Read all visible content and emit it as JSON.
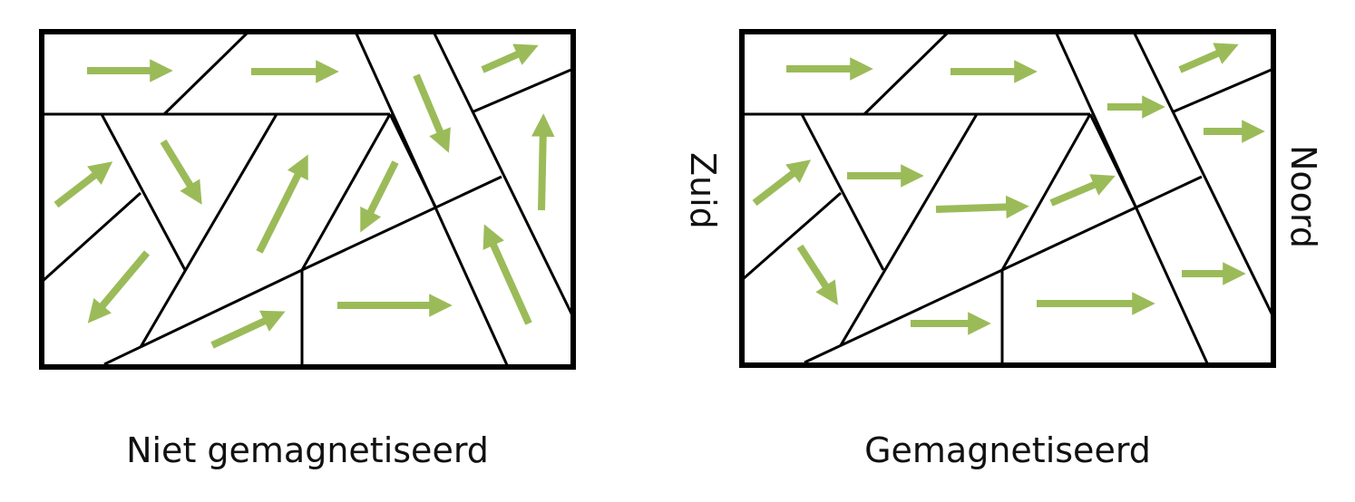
{
  "left": {
    "caption": "Niet gemagnetiseerd"
  },
  "right": {
    "caption": "Gemagnetiseerd",
    "label_left": "Zuid",
    "label_right": "Noord"
  },
  "arrow_color": "#9bbb59",
  "line_color": "#000000"
}
